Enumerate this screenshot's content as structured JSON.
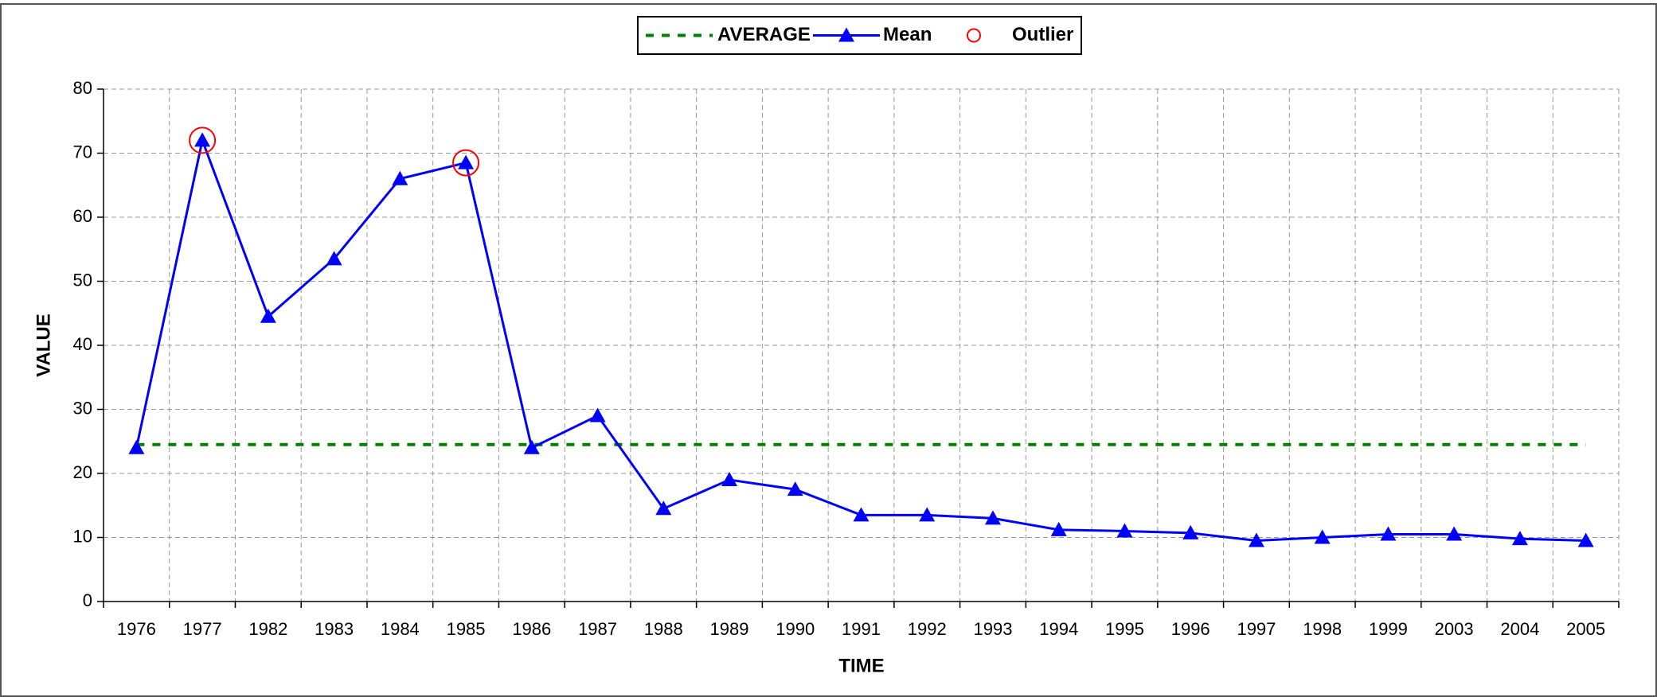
{
  "chart_data": {
    "type": "line",
    "xlabel": "TIME",
    "ylabel": "VALUE",
    "categories": [
      "1976",
      "1977",
      "1982",
      "1983",
      "1984",
      "1985",
      "1986",
      "1987",
      "1988",
      "1989",
      "1990",
      "1991",
      "1992",
      "1993",
      "1994",
      "1995",
      "1996",
      "1997",
      "1998",
      "1999",
      "2003",
      "2004",
      "2005"
    ],
    "series": [
      {
        "name": "AVERAGE",
        "color": "#008000",
        "style": "dashed",
        "marker": "none",
        "values": [
          24.5,
          24.5,
          24.5,
          24.5,
          24.5,
          24.5,
          24.5,
          24.5,
          24.5,
          24.5,
          24.5,
          24.5,
          24.5,
          24.5,
          24.5,
          24.5,
          24.5,
          24.5,
          24.5,
          24.5,
          24.5,
          24.5,
          24.5
        ]
      },
      {
        "name": "Mean",
        "color": "#0000ff",
        "style": "solid",
        "marker": "triangle",
        "values": [
          24,
          72,
          44.5,
          53.5,
          66,
          68.5,
          24,
          29,
          14.5,
          19,
          17.5,
          13.5,
          13.5,
          13,
          11.2,
          11,
          10.7,
          9.5,
          10,
          10.5,
          10.5,
          9.8,
          9.5
        ]
      },
      {
        "name": "Outlier",
        "color": "#ff0000",
        "style": "none",
        "marker": "circle",
        "values": [
          null,
          72,
          null,
          null,
          null,
          68.5,
          null,
          null,
          null,
          null,
          null,
          null,
          null,
          null,
          null,
          null,
          null,
          null,
          null,
          null,
          null,
          null,
          null
        ]
      }
    ],
    "ylim": [
      0,
      80
    ],
    "yticks": [
      0,
      10,
      20,
      30,
      40,
      50,
      60,
      70,
      80
    ],
    "grid": true,
    "legend": "top"
  }
}
